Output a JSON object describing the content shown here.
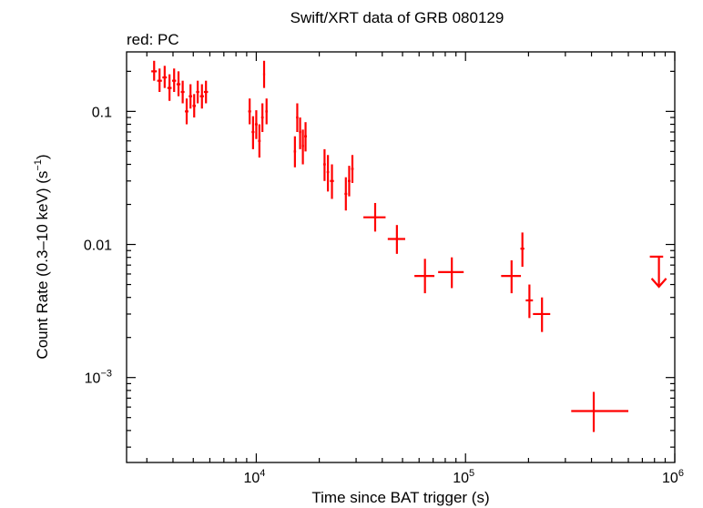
{
  "chart_data": {
    "type": "scatter",
    "title": "Swift/XRT data of GRB 080129",
    "subtitle": "red: PC",
    "xlabel": "Time since BAT trigger (s)",
    "ylabel": "Count Rate (0.3–10 keV) (s",
    "ylabel_sup": "−1",
    "ylabel_end": ")",
    "x_scale": "log",
    "y_scale": "log",
    "xlim": [
      2400,
      1000000
    ],
    "ylim": [
      0.00023,
      0.28
    ],
    "grid": false,
    "x_ticks": [
      {
        "value": 10000,
        "base": "10",
        "exp": "4"
      },
      {
        "value": 100000,
        "base": "10",
        "exp": "5"
      },
      {
        "value": 1000000,
        "base": "10",
        "exp": "6"
      }
    ],
    "y_ticks": [
      {
        "value": 0.1,
        "label": "0.1"
      },
      {
        "value": 0.01,
        "label": "0.01"
      },
      {
        "value": 0.001,
        "base": "10",
        "exp": "−3"
      }
    ],
    "series": [
      {
        "color": "#ff0000",
        "points": [
          {
            "x": 3250,
            "y": 0.2,
            "xerr": [
              100,
              100
            ],
            "yerr": [
              0.03,
              0.04
            ]
          },
          {
            "x": 3450,
            "y": 0.17,
            "xerr": [
              90,
              90
            ],
            "yerr": [
              0.03,
              0.04
            ]
          },
          {
            "x": 3650,
            "y": 0.18,
            "xerr": [
              90,
              90
            ],
            "yerr": [
              0.03,
              0.04
            ]
          },
          {
            "x": 3850,
            "y": 0.15,
            "xerr": [
              90,
              90
            ],
            "yerr": [
              0.03,
              0.04
            ]
          },
          {
            "x": 4050,
            "y": 0.17,
            "xerr": [
              90,
              90
            ],
            "yerr": [
              0.03,
              0.04
            ]
          },
          {
            "x": 4250,
            "y": 0.16,
            "xerr": [
              90,
              90
            ],
            "yerr": [
              0.03,
              0.04
            ]
          },
          {
            "x": 4450,
            "y": 0.14,
            "xerr": [
              90,
              90
            ],
            "yerr": [
              0.025,
              0.03
            ]
          },
          {
            "x": 4650,
            "y": 0.1,
            "xerr": [
              90,
              90
            ],
            "yerr": [
              0.02,
              0.025
            ]
          },
          {
            "x": 4850,
            "y": 0.13,
            "xerr": [
              90,
              90
            ],
            "yerr": [
              0.025,
              0.03
            ]
          },
          {
            "x": 5050,
            "y": 0.11,
            "xerr": [
              90,
              90
            ],
            "yerr": [
              0.02,
              0.025
            ]
          },
          {
            "x": 5250,
            "y": 0.14,
            "xerr": [
              90,
              90
            ],
            "yerr": [
              0.025,
              0.03
            ]
          },
          {
            "x": 5500,
            "y": 0.13,
            "xerr": [
              120,
              120
            ],
            "yerr": [
              0.025,
              0.03
            ]
          },
          {
            "x": 5750,
            "y": 0.14,
            "xerr": [
              130,
              130
            ],
            "yerr": [
              0.025,
              0.03
            ]
          },
          {
            "x": 9300,
            "y": 0.1,
            "xerr": [
              150,
              150
            ],
            "yerr": [
              0.02,
              0.025
            ]
          },
          {
            "x": 9650,
            "y": 0.07,
            "xerr": [
              150,
              150
            ],
            "yerr": [
              0.018,
              0.022
            ]
          },
          {
            "x": 10000,
            "y": 0.08,
            "xerr": [
              150,
              150
            ],
            "yerr": [
              0.018,
              0.022
            ]
          },
          {
            "x": 10350,
            "y": 0.06,
            "xerr": [
              150,
              150
            ],
            "yerr": [
              0.015,
              0.02
            ]
          },
          {
            "x": 10700,
            "y": 0.09,
            "xerr": [
              150,
              150
            ],
            "yerr": [
              0.02,
              0.025
            ]
          },
          {
            "x": 10900,
            "y": 0.19,
            "xerr": [
              120,
              120
            ],
            "yerr": [
              0.04,
              0.05
            ]
          },
          {
            "x": 11200,
            "y": 0.1,
            "xerr": [
              150,
              150
            ],
            "yerr": [
              0.02,
              0.025
            ]
          },
          {
            "x": 15300,
            "y": 0.05,
            "xerr": [
              200,
              200
            ],
            "yerr": [
              0.012,
              0.015
            ]
          },
          {
            "x": 15700,
            "y": 0.09,
            "xerr": [
              200,
              200
            ],
            "yerr": [
              0.02,
              0.025
            ]
          },
          {
            "x": 16200,
            "y": 0.07,
            "xerr": [
              200,
              200
            ],
            "yerr": [
              0.018,
              0.02
            ]
          },
          {
            "x": 16700,
            "y": 0.055,
            "xerr": [
              200,
              200
            ],
            "yerr": [
              0.015,
              0.018
            ]
          },
          {
            "x": 17200,
            "y": 0.065,
            "xerr": [
              250,
              250
            ],
            "yerr": [
              0.015,
              0.018
            ]
          },
          {
            "x": 21200,
            "y": 0.04,
            "xerr": [
              300,
              300
            ],
            "yerr": [
              0.01,
              0.012
            ]
          },
          {
            "x": 22000,
            "y": 0.035,
            "xerr": [
              300,
              300
            ],
            "yerr": [
              0.01,
              0.012
            ]
          },
          {
            "x": 23000,
            "y": 0.03,
            "xerr": [
              500,
              500
            ],
            "yerr": [
              0.008,
              0.01
            ]
          },
          {
            "x": 26800,
            "y": 0.024,
            "xerr": [
              400,
              400
            ],
            "yerr": [
              0.006,
              0.008
            ]
          },
          {
            "x": 27800,
            "y": 0.03,
            "xerr": [
              400,
              400
            ],
            "yerr": [
              0.007,
              0.009
            ]
          },
          {
            "x": 28800,
            "y": 0.037,
            "xerr": [
              400,
              400
            ],
            "yerr": [
              0.008,
              0.01
            ]
          },
          {
            "x": 37000,
            "y": 0.016,
            "xerr": [
              4500,
              4500
            ],
            "yerr": [
              0.0035,
              0.0045
            ]
          },
          {
            "x": 47000,
            "y": 0.011,
            "xerr": [
              4500,
              4500
            ],
            "yerr": [
              0.0025,
              0.003
            ]
          },
          {
            "x": 64000,
            "y": 0.0058,
            "xerr": [
              7000,
              7000
            ],
            "yerr": [
              0.0015,
              0.002
            ]
          },
          {
            "x": 86000,
            "y": 0.0062,
            "xerr": [
              12000,
              12000
            ],
            "yerr": [
              0.0015,
              0.0018
            ]
          },
          {
            "x": 166000,
            "y": 0.0058,
            "xerr": [
              18000,
              18000
            ],
            "yerr": [
              0.0015,
              0.0018
            ]
          },
          {
            "x": 187000,
            "y": 0.0093,
            "xerr": [
              4000,
              4000
            ],
            "yerr": [
              0.0025,
              0.003
            ]
          },
          {
            "x": 202000,
            "y": 0.0038,
            "xerr": [
              8000,
              8000
            ],
            "yerr": [
              0.001,
              0.0012
            ]
          },
          {
            "x": 232000,
            "y": 0.003,
            "xerr": [
              22000,
              22000
            ],
            "yerr": [
              0.0008,
              0.001
            ]
          },
          {
            "x": 410000,
            "y": 0.00056,
            "xerr": [
              90000,
              190000
            ],
            "yerr": [
              0.00017,
              0.00022
            ]
          }
        ],
        "upper_limits": [
          {
            "x": 840000,
            "y": 0.0081,
            "xerr": [
              80000,
              40000
            ]
          }
        ]
      }
    ]
  }
}
